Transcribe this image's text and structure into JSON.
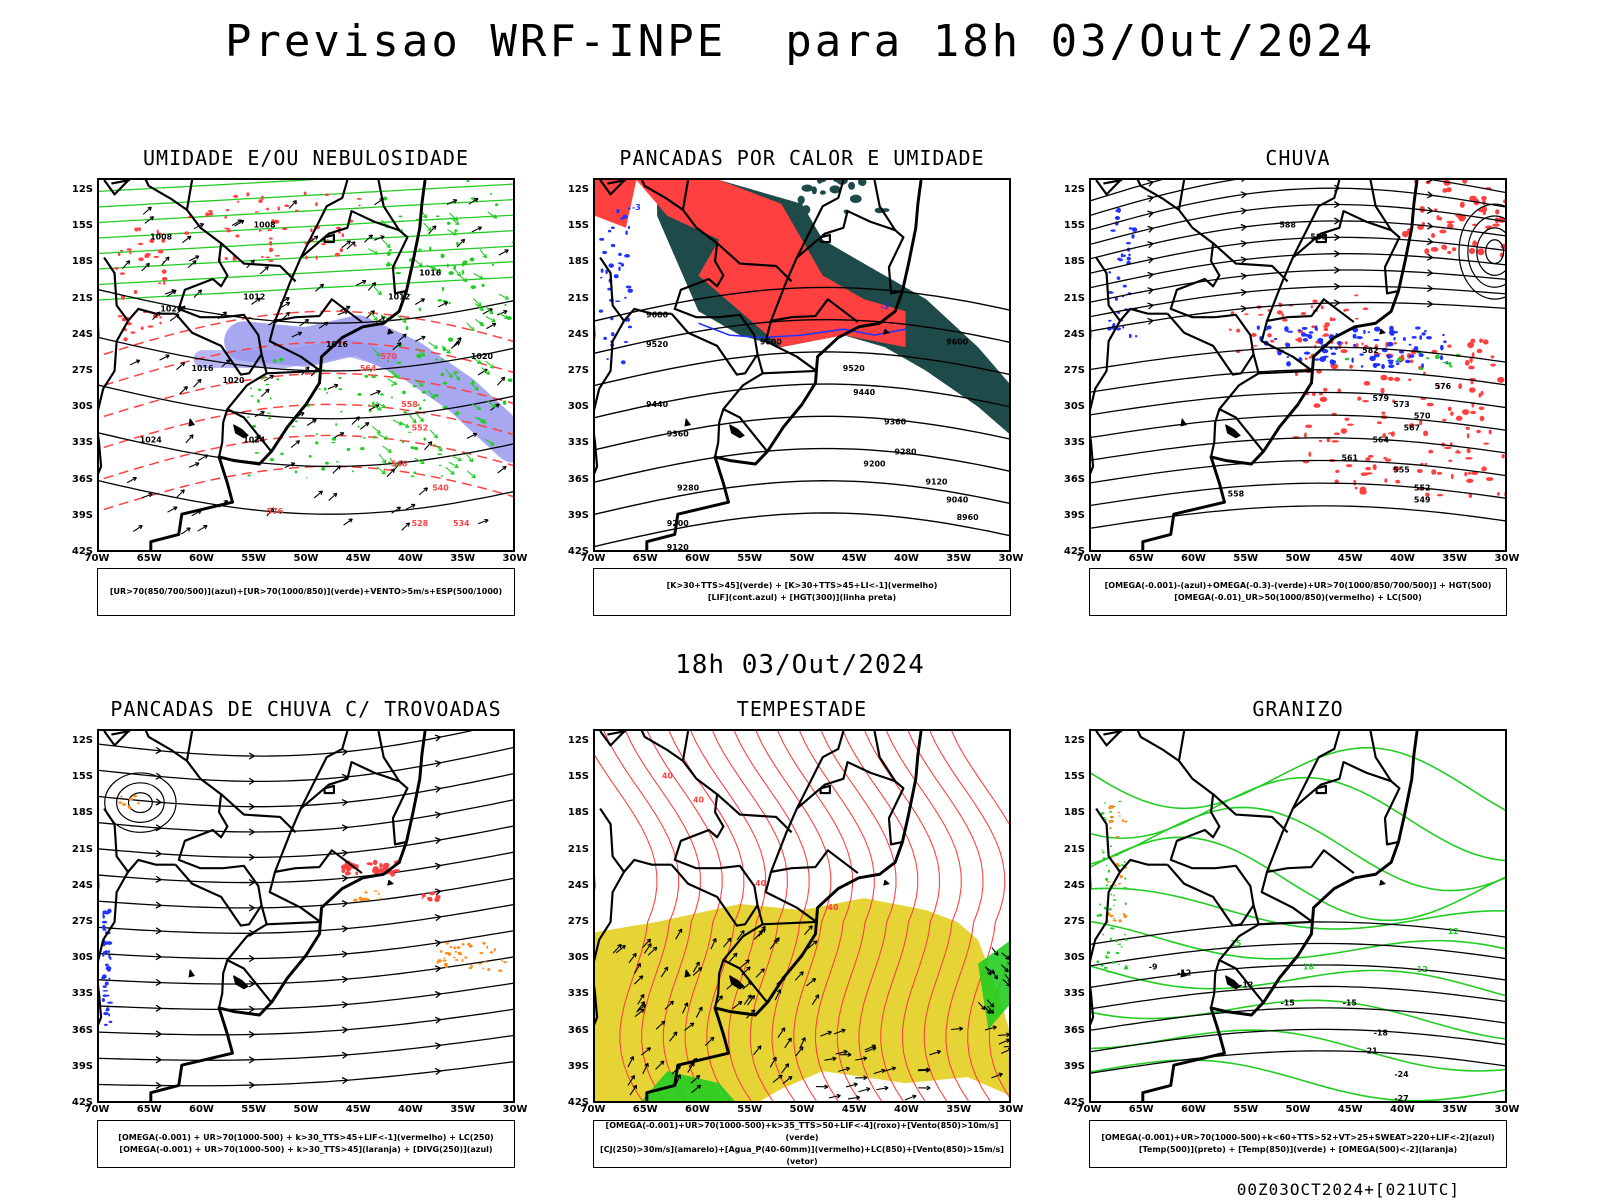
{
  "page": {
    "title": "Previsao WRF-INPE  para 18h 03/Out/2024",
    "subtitle": "18h 03/Out/2024",
    "footer": "00Z03OCT2024+[021UTC]"
  },
  "axes": {
    "lat_labels": [
      "12S",
      "15S",
      "18S",
      "21S",
      "24S",
      "27S",
      "30S",
      "33S",
      "36S",
      "39S",
      "42S"
    ],
    "lon_labels": [
      "70W",
      "65W",
      "60W",
      "55W",
      "50W",
      "45W",
      "40W",
      "35W",
      "30W"
    ]
  },
  "colors": {
    "red": "#ff4040",
    "green": "#22cc22",
    "blue": "#2233ff",
    "lavender": "#9999ee",
    "darkteal": "#1f4a4a",
    "yellow": "#e6d437",
    "orange": "#ff8c1a",
    "black": "#000000"
  },
  "panels": [
    {
      "id": "umidade",
      "title": "UMIDADE E/OU NEBULOSIDADE",
      "legend": [
        "[UR>70(850/700/500)](azul)+[UR>70(1000/850)](verde)+VENTO>5m/s+ESP(500/1000)"
      ],
      "labels": [
        "1008",
        "1008",
        "1012",
        "1012",
        "1016",
        "1016",
        "1016",
        "1020",
        "1020",
        "1020",
        "1024",
        "1024",
        "576",
        "570",
        "564",
        "558",
        "552",
        "546",
        "540",
        "534",
        "528"
      ]
    },
    {
      "id": "pancadas_calor",
      "title": "PANCADAS POR CALOR E UMIDADE",
      "legend": [
        "[K>30+TTS>45](verde) + [K>30+TTS>45+LI<-1](vermelho)",
        "[LIF](cont.azul) + [HGT(300)](linha preta)"
      ],
      "labels": [
        "9600",
        "9600",
        "9600",
        "9520",
        "9520",
        "9440",
        "9440",
        "9360",
        "9360",
        "9280",
        "9280",
        "9200",
        "9200",
        "9120",
        "9120",
        "9040",
        "8960",
        "-3",
        "-3"
      ]
    },
    {
      "id": "chuva",
      "title": "CHUVA",
      "legend": [
        "[OMEGA(-0.001)-(azul)+OMEGA(-0.3)-(verde)+UR>70(1000/850/700/500)] + HGT(500)",
        "[OMEGA(-0.01)_UR>50(1000/850)(vermelho) + LC(500)"
      ],
      "labels": [
        "588",
        "585",
        "579",
        "576",
        "573",
        "570",
        "567",
        "564",
        "561",
        "558",
        "555",
        "552",
        "549",
        "582"
      ]
    },
    {
      "id": "pancadas_trovoadas",
      "title": "PANCADAS DE CHUVA C/ TROVOADAS",
      "legend": [
        "[OMEGA(-0.001) + UR>70(1000-500) + k>30_TTS>45+LIF<-1](vermelho) + LC(250)",
        "[OMEGA(-0.001) + UR>70(1000-500) + k>30_TTS>45](laranja) + [DIVG(250)](azul)"
      ],
      "labels": []
    },
    {
      "id": "tempestade",
      "title": "TEMPESTADE",
      "legend": [
        "[OMEGA(-0.001)+UR>70(1000-500)+k>35_TTS>50+LIF<-4](roxo)+[Vento(850)>10m/s](verde)",
        "[CJ(250)>30m/s](amarelo)+[Agua_P(40-60mm)](vermelho)+LC(850)+[Vento(850)>15m/s](vetor)"
      ],
      "labels": [
        "40",
        "40",
        "40",
        "40"
      ]
    },
    {
      "id": "granizo",
      "title": "GRANIZO",
      "legend": [
        "[OMEGA(-0.001)+UR>70(1000-500)+k<60+TTS>52+VT>25+SWEAT>220+LIF<-2](azul)",
        "[Temp(500)](preto) + [Temp(850)](verde) + [OMEGA(500)<-2](laranja)"
      ],
      "labels": [
        "-9",
        "-12",
        "-12",
        "-15",
        "-15",
        "-18",
        "-21",
        "-24",
        "-27",
        "12",
        "15",
        "18",
        "12"
      ]
    }
  ]
}
